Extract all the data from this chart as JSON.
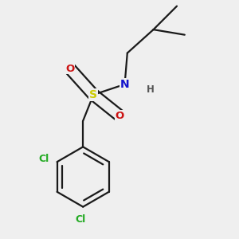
{
  "background_color": "#efefef",
  "atom_colors": {
    "C": "#1a1a1a",
    "H": "#555555",
    "N": "#1414cc",
    "O": "#cc1414",
    "S": "#cccc00",
    "Cl": "#22aa22"
  },
  "bond_color": "#1a1a1a",
  "bond_width": 1.6,
  "font_size_atoms": 10,
  "font_size_h": 8.5
}
